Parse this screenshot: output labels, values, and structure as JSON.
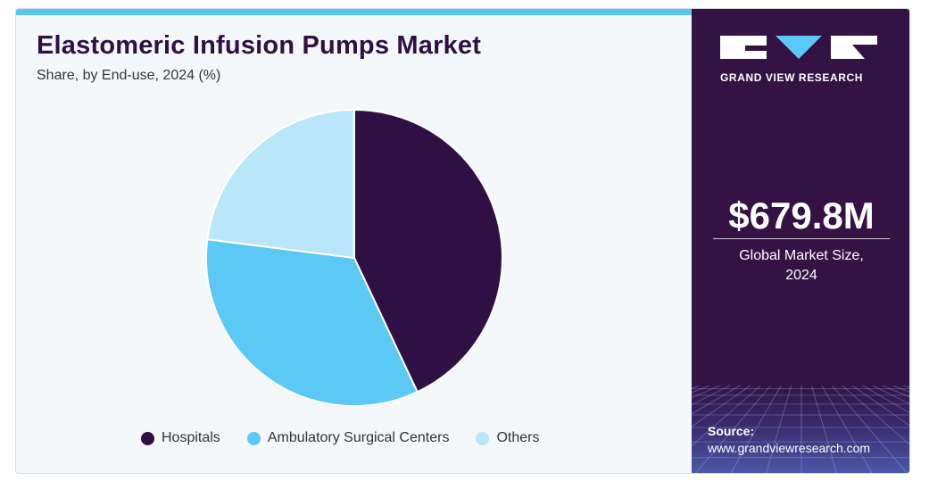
{
  "chart_data": {
    "type": "pie",
    "title": "Elastomeric Infusion Pumps Market",
    "subtitle": "Share, by End-use, 2024 (%)",
    "categories": [
      "Hospitals",
      "Ambulatory Surgical Centers",
      "Others"
    ],
    "values": [
      43,
      34,
      23
    ],
    "colors": [
      "#2f0f44",
      "#5bc8f5",
      "#b9e6f8"
    ],
    "legend_position": "bottom"
  },
  "brand": {
    "name": "GRAND VIEW RESEARCH",
    "logo_icon": "gvr-logo-icon"
  },
  "market": {
    "value": "$679.8M",
    "label_line1": "Global Market Size,",
    "label_line2": "2024"
  },
  "source": {
    "label": "Source:",
    "url": "www.grandviewresearch.com"
  }
}
